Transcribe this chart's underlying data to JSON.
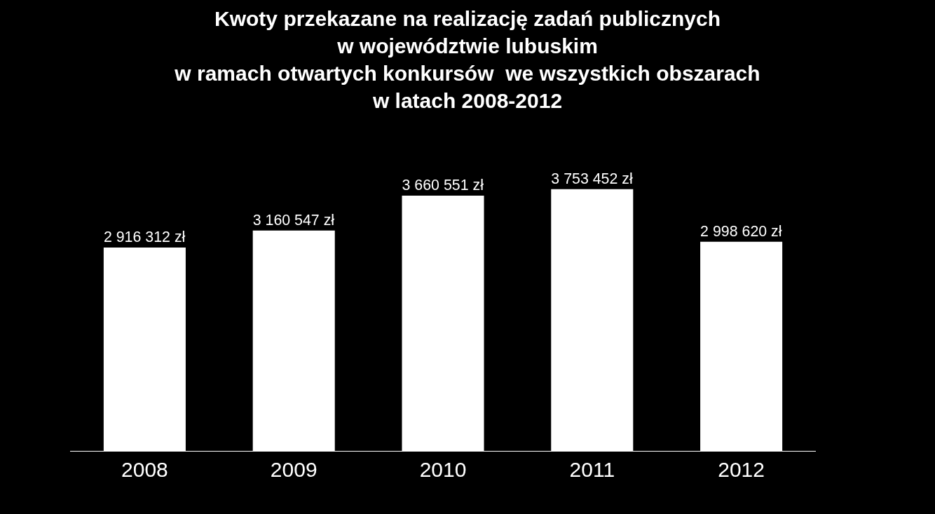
{
  "chart_data": {
    "type": "bar",
    "title": "Kwoty przekazane na realizację zadań publicznych\nw województwie lubuskim\nw ramach otwartych konkursów  we wszystkich obszarach\nw latach 2008-2012",
    "categories": [
      "2008",
      "2009",
      "2010",
      "2011",
      "2012"
    ],
    "values": [
      2916312,
      3160547,
      3660551,
      3753452,
      2998620
    ],
    "value_labels": [
      "2 916 312 zł",
      "3 160 547 zł",
      "3 660 551 zł",
      "3 753 452 zł",
      "2 998 620 zł"
    ],
    "color": "#ffffff"
  }
}
